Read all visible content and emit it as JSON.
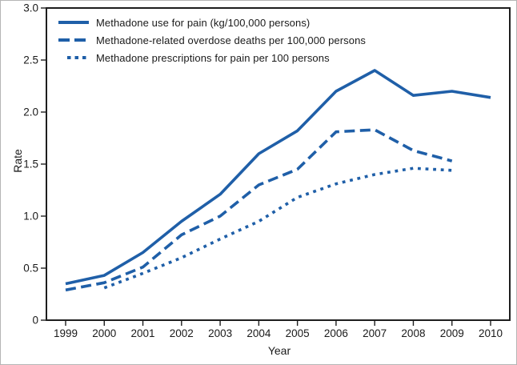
{
  "figure": {
    "background": "#ffffff",
    "outer_border_color": "#b5b5b5"
  },
  "chart_data": {
    "type": "line",
    "title": "",
    "xlabel": "Year",
    "ylabel": "Rate",
    "x": [
      1999,
      2000,
      2001,
      2002,
      2003,
      2004,
      2005,
      2006,
      2007,
      2008,
      2009,
      2010
    ],
    "ylim": [
      0,
      3.0
    ],
    "yticks": {
      "values": [
        0,
        0.5,
        1.0,
        1.5,
        2.0,
        2.5,
        3.0
      ],
      "labels": [
        "0",
        "0.5",
        "1.0",
        "1.5",
        "2.0",
        "2.5",
        "3.0"
      ]
    },
    "grid": false,
    "legend_position": "top-left-inside",
    "line_color": "#1f5fa8",
    "axis_color": "#1e1e1e",
    "series": [
      {
        "name": "methadone-use-for-pain",
        "label": "Methadone use for pain (kg/100,000 persons)",
        "style": "solid",
        "values": [
          0.35,
          0.43,
          0.65,
          0.95,
          1.21,
          1.6,
          1.82,
          2.2,
          2.4,
          2.16,
          2.2,
          2.14
        ]
      },
      {
        "name": "methadone-overdose-deaths",
        "label": "Methadone-related overdose deaths per 100,000 persons",
        "style": "dashed",
        "values": [
          0.29,
          0.36,
          0.51,
          0.82,
          1.0,
          1.3,
          1.45,
          1.81,
          1.83,
          1.63,
          1.53,
          null
        ]
      },
      {
        "name": "methadone-prescriptions",
        "label": "Methadone prescriptions for pain per 100 persons",
        "style": "dotted",
        "values": [
          null,
          0.31,
          0.45,
          0.6,
          0.78,
          0.95,
          1.18,
          1.31,
          1.4,
          1.46,
          1.44,
          null
        ]
      }
    ]
  }
}
